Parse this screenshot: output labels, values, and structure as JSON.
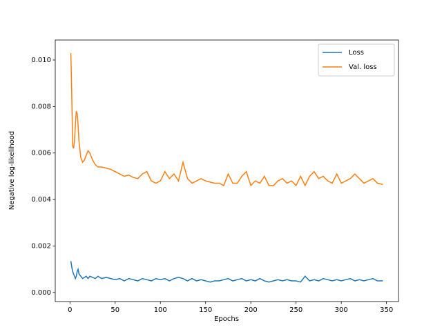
{
  "chart_data": {
    "type": "line",
    "xlabel": "Epochs",
    "ylabel": "Negative log-likelihood",
    "x": [
      1,
      2,
      3,
      4,
      5,
      6,
      7,
      8,
      9,
      10,
      12,
      14,
      16,
      18,
      20,
      22,
      25,
      28,
      31,
      35,
      40,
      45,
      50,
      55,
      60,
      65,
      70,
      75,
      80,
      85,
      90,
      95,
      100,
      105,
      110,
      115,
      120,
      125,
      130,
      135,
      140,
      145,
      150,
      155,
      160,
      165,
      170,
      175,
      180,
      185,
      190,
      195,
      200,
      205,
      210,
      215,
      220,
      225,
      230,
      235,
      240,
      245,
      250,
      255,
      260,
      265,
      270,
      275,
      280,
      285,
      290,
      295,
      300,
      305,
      310,
      315,
      320,
      325,
      330,
      335,
      340,
      346
    ],
    "series": [
      {
        "name": "Loss",
        "color": "#1f77b4",
        "values": [
          0.00135,
          0.0011,
          0.0009,
          0.0008,
          0.0007,
          0.0006,
          0.0007,
          0.0009,
          0.001,
          0.0008,
          0.0007,
          0.0006,
          0.00065,
          0.0007,
          0.0006,
          0.0007,
          0.00065,
          0.0006,
          0.0007,
          0.0006,
          0.00065,
          0.0006,
          0.00055,
          0.0006,
          0.0005,
          0.0006,
          0.00055,
          0.0005,
          0.0006,
          0.00055,
          0.0005,
          0.0006,
          0.00055,
          0.0006,
          0.0005,
          0.0006,
          0.00065,
          0.0006,
          0.0005,
          0.0006,
          0.0005,
          0.00055,
          0.0005,
          0.00045,
          0.0005,
          0.0005,
          0.00055,
          0.0006,
          0.0005,
          0.00055,
          0.0006,
          0.0005,
          0.00055,
          0.0005,
          0.0006,
          0.0005,
          0.00045,
          0.0005,
          0.00055,
          0.0005,
          0.00055,
          0.0005,
          0.0005,
          0.00045,
          0.0007,
          0.0005,
          0.00055,
          0.0005,
          0.0006,
          0.00055,
          0.0005,
          0.00055,
          0.0005,
          0.00055,
          0.0006,
          0.0005,
          0.00055,
          0.0005,
          0.00055,
          0.0006,
          0.0005,
          0.0005
        ]
      },
      {
        "name": "Val. loss",
        "color": "#ff7f0e",
        "values": [
          0.0103,
          0.0085,
          0.0063,
          0.0062,
          0.0065,
          0.0072,
          0.0078,
          0.0077,
          0.0072,
          0.0065,
          0.0058,
          0.0056,
          0.0057,
          0.0059,
          0.0061,
          0.006,
          0.0057,
          0.0055,
          0.0054,
          0.0054,
          0.00535,
          0.0053,
          0.0052,
          0.0051,
          0.005,
          0.00505,
          0.00495,
          0.0049,
          0.0051,
          0.0052,
          0.0048,
          0.0047,
          0.0048,
          0.0052,
          0.0049,
          0.0051,
          0.0048,
          0.0056,
          0.0049,
          0.0047,
          0.0048,
          0.0049,
          0.0048,
          0.00475,
          0.0047,
          0.0047,
          0.0046,
          0.0051,
          0.0047,
          0.0047,
          0.005,
          0.0052,
          0.0046,
          0.0048,
          0.0047,
          0.005,
          0.0046,
          0.0046,
          0.0048,
          0.0049,
          0.0047,
          0.0048,
          0.0046,
          0.005,
          0.0046,
          0.005,
          0.0052,
          0.0049,
          0.005,
          0.0048,
          0.0047,
          0.0051,
          0.0047,
          0.0048,
          0.0049,
          0.0051,
          0.0049,
          0.0047,
          0.0048,
          0.0049,
          0.0047,
          0.00465
        ]
      }
    ],
    "xlim": [
      -16.25,
      363.25
    ],
    "xticks": [
      0,
      50,
      100,
      150,
      200,
      250,
      300,
      350
    ],
    "ylim": [
      -0.00039,
      0.01086
    ],
    "yticks": [
      {
        "value": 0,
        "label": "0.000"
      },
      {
        "value": 0.002,
        "label": "0.002"
      },
      {
        "value": 0.004,
        "label": "0.004"
      },
      {
        "value": 0.006,
        "label": "0.006"
      },
      {
        "value": 0.008,
        "label": "0.008"
      },
      {
        "value": 0.01,
        "label": "0.010"
      }
    ],
    "legend": "upper right"
  }
}
